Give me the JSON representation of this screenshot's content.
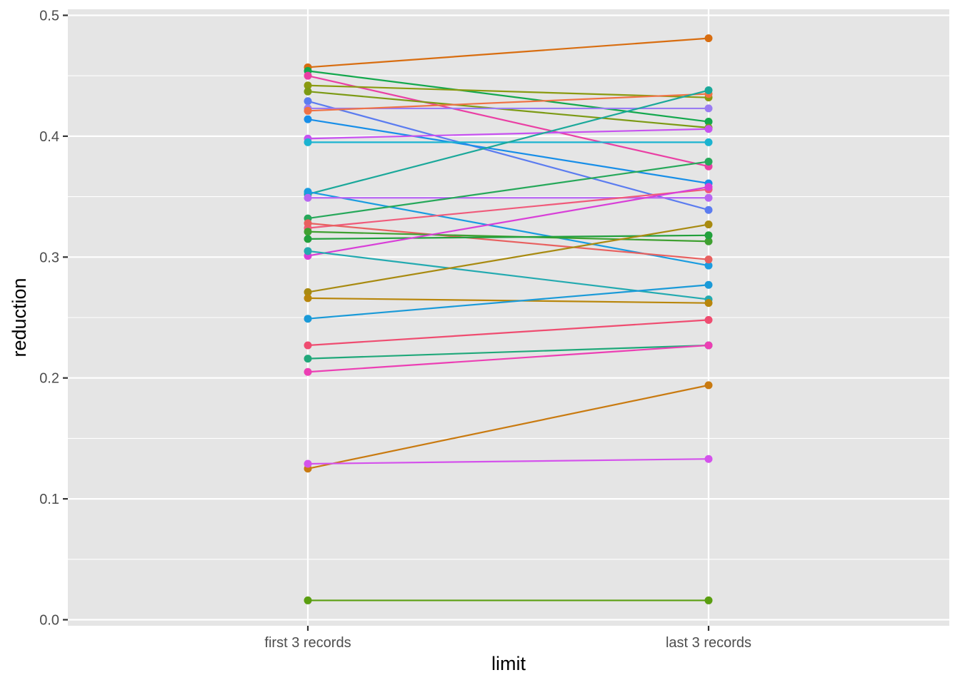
{
  "chart_data": {
    "type": "line",
    "xlabel": "limit",
    "ylabel": "reduction",
    "categories": [
      "first 3 records",
      "last 3 records"
    ],
    "ylim": [
      -0.005,
      0.505
    ],
    "yticks": [
      0.0,
      0.1,
      0.2,
      0.3,
      0.4,
      0.5
    ],
    "ytick_labels": [
      "0.0",
      "0.1",
      "0.2",
      "0.3",
      "0.4",
      "0.5"
    ],
    "grid": true,
    "legend": "none",
    "background": "#e5e5e5",
    "grid_color": "#ffffff",
    "series": [
      {
        "color": "#d86d10",
        "values": [
          0.457,
          0.481
        ]
      },
      {
        "color": "#13a84d",
        "values": [
          0.454,
          0.412
        ]
      },
      {
        "color": "#ea3fa4",
        "values": [
          0.45,
          0.375
        ]
      },
      {
        "color": "#8a9a10",
        "values": [
          0.442,
          0.432
        ]
      },
      {
        "color": "#7c9a14",
        "values": [
          0.437,
          0.407
        ]
      },
      {
        "color": "#5b7cf0",
        "values": [
          0.429,
          0.339
        ]
      },
      {
        "color": "#9a7cf2",
        "values": [
          0.423,
          0.423
        ]
      },
      {
        "color": "#ef7245",
        "values": [
          0.421,
          0.435
        ]
      },
      {
        "color": "#178ee8",
        "values": [
          0.414,
          0.361
        ]
      },
      {
        "color": "#c752f0",
        "values": [
          0.398,
          0.406
        ]
      },
      {
        "color": "#1bb3d0",
        "values": [
          0.395,
          0.395
        ]
      },
      {
        "color": "#1aa89a",
        "values": [
          0.352,
          0.438
        ]
      },
      {
        "color": "#1a9ce0",
        "values": [
          0.354,
          0.293
        ]
      },
      {
        "color": "#b766f2",
        "values": [
          0.349,
          0.349
        ]
      },
      {
        "color": "#26a85a",
        "values": [
          0.332,
          0.379
        ]
      },
      {
        "color": "#f05a7a",
        "values": [
          0.324,
          0.356
        ]
      },
      {
        "color": "#e8605f",
        "values": [
          0.328,
          0.298
        ]
      },
      {
        "color": "#3fa030",
        "values": [
          0.321,
          0.313
        ]
      },
      {
        "color": "#22a03c",
        "values": [
          0.315,
          0.318
        ]
      },
      {
        "color": "#d83fd8",
        "values": [
          0.301,
          0.358
        ]
      },
      {
        "color": "#23aab0",
        "values": [
          0.305,
          0.265
        ]
      },
      {
        "color": "#a88a10",
        "values": [
          0.271,
          0.327
        ]
      },
      {
        "color": "#b8860b",
        "values": [
          0.266,
          0.262
        ]
      },
      {
        "color": "#1a9ad8",
        "values": [
          0.249,
          0.277
        ]
      },
      {
        "color": "#ef4c70",
        "values": [
          0.227,
          0.248
        ]
      },
      {
        "color": "#20a87a",
        "values": [
          0.216,
          0.227
        ]
      },
      {
        "color": "#ec3fb4",
        "values": [
          0.205,
          0.227
        ]
      },
      {
        "color": "#c97a10",
        "values": [
          0.125,
          0.194
        ]
      },
      {
        "color": "#d452ec",
        "values": [
          0.129,
          0.133
        ]
      },
      {
        "color": "#5a9e10",
        "values": [
          0.016,
          0.016
        ]
      }
    ]
  }
}
